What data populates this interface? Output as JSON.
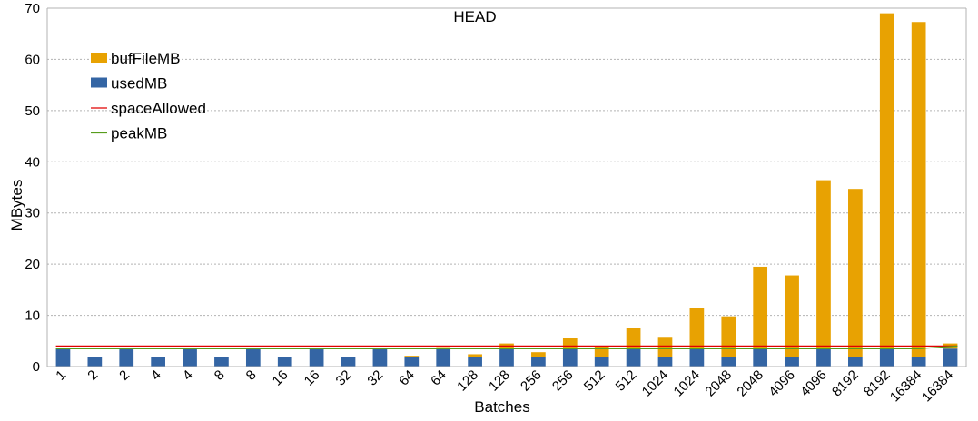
{
  "chart_data": {
    "type": "bar",
    "title": "HEAD",
    "xlabel": "Batches",
    "ylabel": "MBytes",
    "ylim": [
      0,
      70
    ],
    "yticks": [
      0,
      10,
      20,
      30,
      40,
      50,
      60,
      70
    ],
    "grid": true,
    "stacked": true,
    "legend_position": "top-left",
    "categories": [
      "1",
      "2",
      "2",
      "4",
      "4",
      "8",
      "8",
      "16",
      "16",
      "32",
      "32",
      "64",
      "64",
      "128",
      "128",
      "256",
      "256",
      "512",
      "512",
      "1024",
      "1024",
      "2048",
      "2048",
      "4096",
      "4096",
      "8192",
      "8192",
      "16384",
      "16384"
    ],
    "series": [
      {
        "name": "usedMB",
        "kind": "bar",
        "color": "#3465a4",
        "values": [
          3.5,
          1.8,
          3.5,
          1.8,
          3.5,
          1.8,
          3.5,
          1.8,
          3.5,
          1.8,
          3.5,
          1.8,
          3.5,
          1.8,
          3.5,
          1.8,
          3.5,
          1.8,
          3.5,
          1.8,
          3.5,
          1.8,
          3.5,
          1.8,
          3.5,
          1.8,
          3.5,
          1.8,
          3.5
        ]
      },
      {
        "name": "bufFileMB",
        "kind": "bar",
        "color": "#e8a202",
        "values": [
          0,
          0,
          0,
          0,
          0,
          0,
          0,
          0,
          0,
          0,
          0,
          0.3,
          0.3,
          0.6,
          1.0,
          1.0,
          2.0,
          2.2,
          4.0,
          4.0,
          8.0,
          8.0,
          16.0,
          16.0,
          32.9,
          32.9,
          65.5,
          65.5,
          1.0
        ]
      },
      {
        "name": "spaceAllowed",
        "kind": "line",
        "color": "#e00000",
        "values": [
          4,
          4,
          4,
          4,
          4,
          4,
          4,
          4,
          4,
          4,
          4,
          4,
          4,
          4,
          4,
          4,
          4,
          4,
          4,
          4,
          4,
          4,
          4,
          4,
          4,
          4,
          4,
          4,
          4
        ]
      },
      {
        "name": "peakMB",
        "kind": "line",
        "color": "#579d1c",
        "values": [
          3.5,
          3.5,
          3.5,
          3.5,
          3.5,
          3.5,
          3.5,
          3.5,
          3.5,
          3.5,
          3.5,
          3.5,
          3.5,
          3.5,
          3.5,
          3.5,
          3.5,
          3.5,
          3.5,
          3.5,
          3.5,
          3.5,
          3.5,
          3.5,
          3.5,
          3.5,
          3.5,
          3.5,
          4.0
        ]
      }
    ],
    "legend_order": [
      "bufFileMB",
      "usedMB",
      "spaceAllowed",
      "peakMB"
    ]
  }
}
